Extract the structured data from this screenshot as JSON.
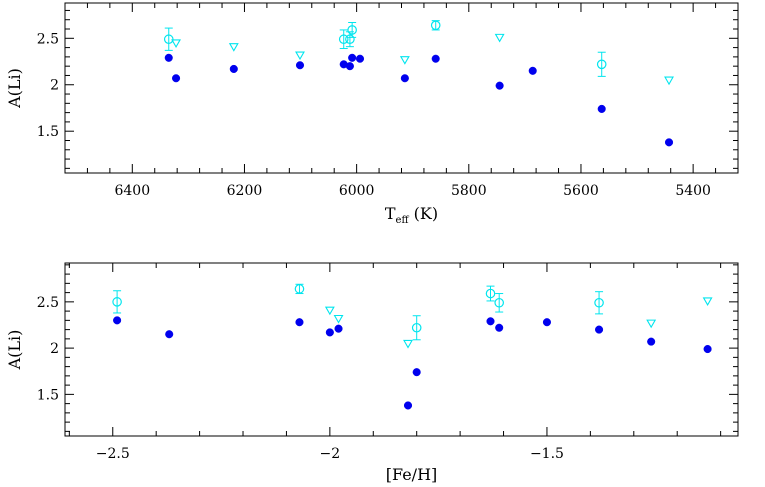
{
  "colors": {
    "filled": "#0000ee",
    "open": "#00e5ee",
    "frame": "#000000"
  },
  "chart_data": [
    {
      "type": "scatter",
      "xlabel": "T",
      "xlabel_sub": "eff",
      "xlabel_unit": " (K)",
      "ylabel": "A(Li)",
      "xlim": [
        6520,
        5320
      ],
      "ylim": [
        1.05,
        2.88
      ],
      "xticks": [
        6400,
        6200,
        6000,
        5800,
        5600,
        5400
      ],
      "yticks": [
        1.5,
        2,
        2.5
      ],
      "ytick_labels": [
        "1.5",
        "2",
        "2.5"
      ],
      "grid": false,
      "legend": "none",
      "series": [
        {
          "marker": "filled-circle",
          "points": [
            {
              "x": 6335,
              "y": 2.29
            },
            {
              "x": 6322,
              "y": 2.07
            },
            {
              "x": 6219,
              "y": 2.17
            },
            {
              "x": 6101,
              "y": 2.21
            },
            {
              "x": 6023,
              "y": 2.22
            },
            {
              "x": 6012,
              "y": 2.2
            },
            {
              "x": 6008,
              "y": 2.29
            },
            {
              "x": 5994,
              "y": 2.28
            },
            {
              "x": 5914,
              "y": 2.07
            },
            {
              "x": 5859,
              "y": 2.28
            },
            {
              "x": 5745,
              "y": 1.99
            },
            {
              "x": 5686,
              "y": 2.15
            },
            {
              "x": 5563,
              "y": 1.74
            },
            {
              "x": 5443,
              "y": 1.38
            }
          ]
        },
        {
          "marker": "open-circle",
          "points": [
            {
              "x": 6335,
              "y": 2.49,
              "err": 0.12
            },
            {
              "x": 6023,
              "y": 2.49,
              "err": 0.1
            },
            {
              "x": 6012,
              "y": 2.49,
              "err": 0.08
            },
            {
              "x": 6008,
              "y": 2.59,
              "err": 0.08
            },
            {
              "x": 5859,
              "y": 2.64,
              "err": 0.05
            },
            {
              "x": 5563,
              "y": 2.22,
              "err": 0.13
            }
          ]
        },
        {
          "marker": "open-triangle",
          "points": [
            {
              "x": 6322,
              "y": 2.45
            },
            {
              "x": 6219,
              "y": 2.41
            },
            {
              "x": 6101,
              "y": 2.32
            },
            {
              "x": 5914,
              "y": 2.27
            },
            {
              "x": 5745,
              "y": 2.51
            },
            {
              "x": 5443,
              "y": 2.05
            }
          ]
        }
      ]
    },
    {
      "type": "scatter",
      "xlabel": "[Fe/H]",
      "ylabel": "A(Li)",
      "xlim": [
        -2.61,
        -1.06
      ],
      "ylim": [
        1.05,
        2.92
      ],
      "xticks": [
        -2.5,
        -2,
        -1.5
      ],
      "xtick_labels": [
        "−2.5",
        "−2",
        "−1.5"
      ],
      "yticks": [
        1.5,
        2,
        2.5
      ],
      "ytick_labels": [
        "1.5",
        "2",
        "2.5"
      ],
      "grid": false,
      "legend": "none",
      "series": [
        {
          "marker": "filled-circle",
          "points": [
            {
              "x": -2.49,
              "y": 2.3
            },
            {
              "x": -2.37,
              "y": 2.15
            },
            {
              "x": -2.07,
              "y": 2.28
            },
            {
              "x": -2.0,
              "y": 2.17
            },
            {
              "x": -1.98,
              "y": 2.21
            },
            {
              "x": -1.82,
              "y": 1.38
            },
            {
              "x": -1.8,
              "y": 1.74
            },
            {
              "x": -1.63,
              "y": 2.29
            },
            {
              "x": -1.61,
              "y": 2.22
            },
            {
              "x": -1.5,
              "y": 2.28
            },
            {
              "x": -1.38,
              "y": 2.2
            },
            {
              "x": -1.26,
              "y": 2.07
            },
            {
              "x": -1.13,
              "y": 1.99
            }
          ]
        },
        {
          "marker": "open-circle",
          "points": [
            {
              "x": -2.49,
              "y": 2.5,
              "err": 0.12
            },
            {
              "x": -2.07,
              "y": 2.64,
              "err": 0.05
            },
            {
              "x": -1.8,
              "y": 2.22,
              "err": 0.13
            },
            {
              "x": -1.63,
              "y": 2.59,
              "err": 0.08
            },
            {
              "x": -1.61,
              "y": 2.49,
              "err": 0.1
            },
            {
              "x": -1.38,
              "y": 2.49,
              "err": 0.12
            }
          ]
        },
        {
          "marker": "open-triangle",
          "points": [
            {
              "x": -2.0,
              "y": 2.41
            },
            {
              "x": -1.98,
              "y": 2.32
            },
            {
              "x": -1.82,
              "y": 2.05
            },
            {
              "x": -1.26,
              "y": 2.27
            },
            {
              "x": -1.13,
              "y": 2.51
            }
          ]
        }
      ]
    }
  ]
}
